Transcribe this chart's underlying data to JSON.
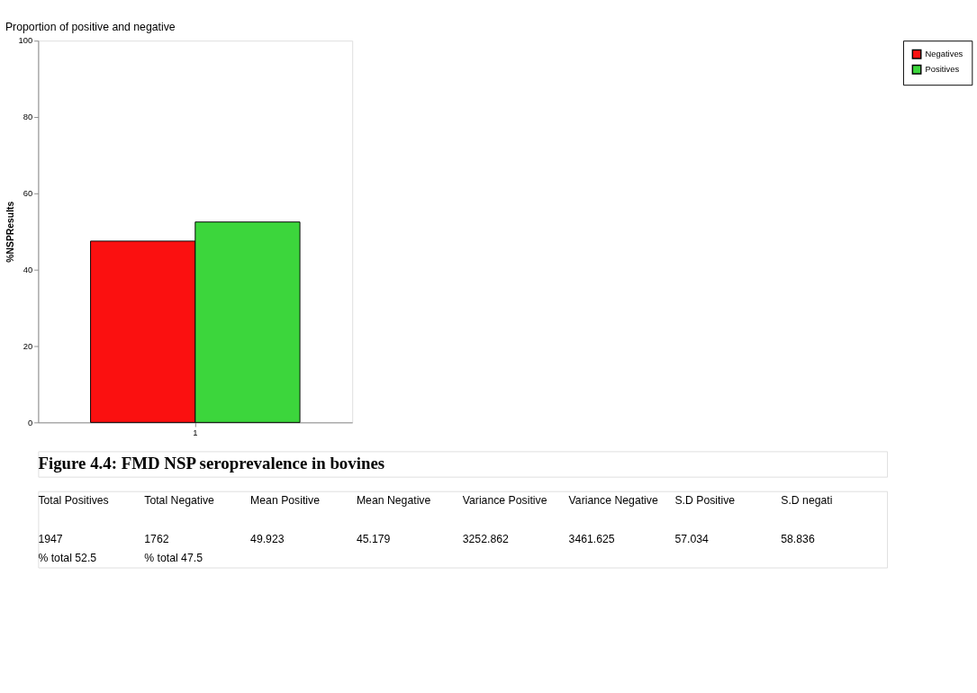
{
  "chart_data": {
    "type": "bar",
    "title": "Proportion of positive and negative",
    "ylabel": "%NSPResults",
    "categories": [
      "1"
    ],
    "series": [
      {
        "name": "Negatives",
        "color": "#fb1010",
        "values": [
          47.5
        ]
      },
      {
        "name": "Positives",
        "color": "#3cd63c",
        "values": [
          52.5
        ]
      }
    ],
    "ylim": [
      0,
      100
    ],
    "yticks": [
      0,
      20,
      40,
      60,
      80,
      100
    ],
    "grid": false,
    "legend": "right",
    "annotations": [
      "Figure 4.4: FMD NSP seroprevalence in bovines",
      "Total Positives",
      "Total Negative",
      "Mean Positive",
      "Mean Negative",
      "Variance Positive",
      "Variance Negative",
      "S.D Positive",
      "S.D negati",
      "1947",
      "1762",
      "49.923",
      "45.179",
      "3252.862",
      "3461.625",
      "57.034",
      "58.836",
      "% total 52.5",
      "% total 47.5"
    ]
  }
}
